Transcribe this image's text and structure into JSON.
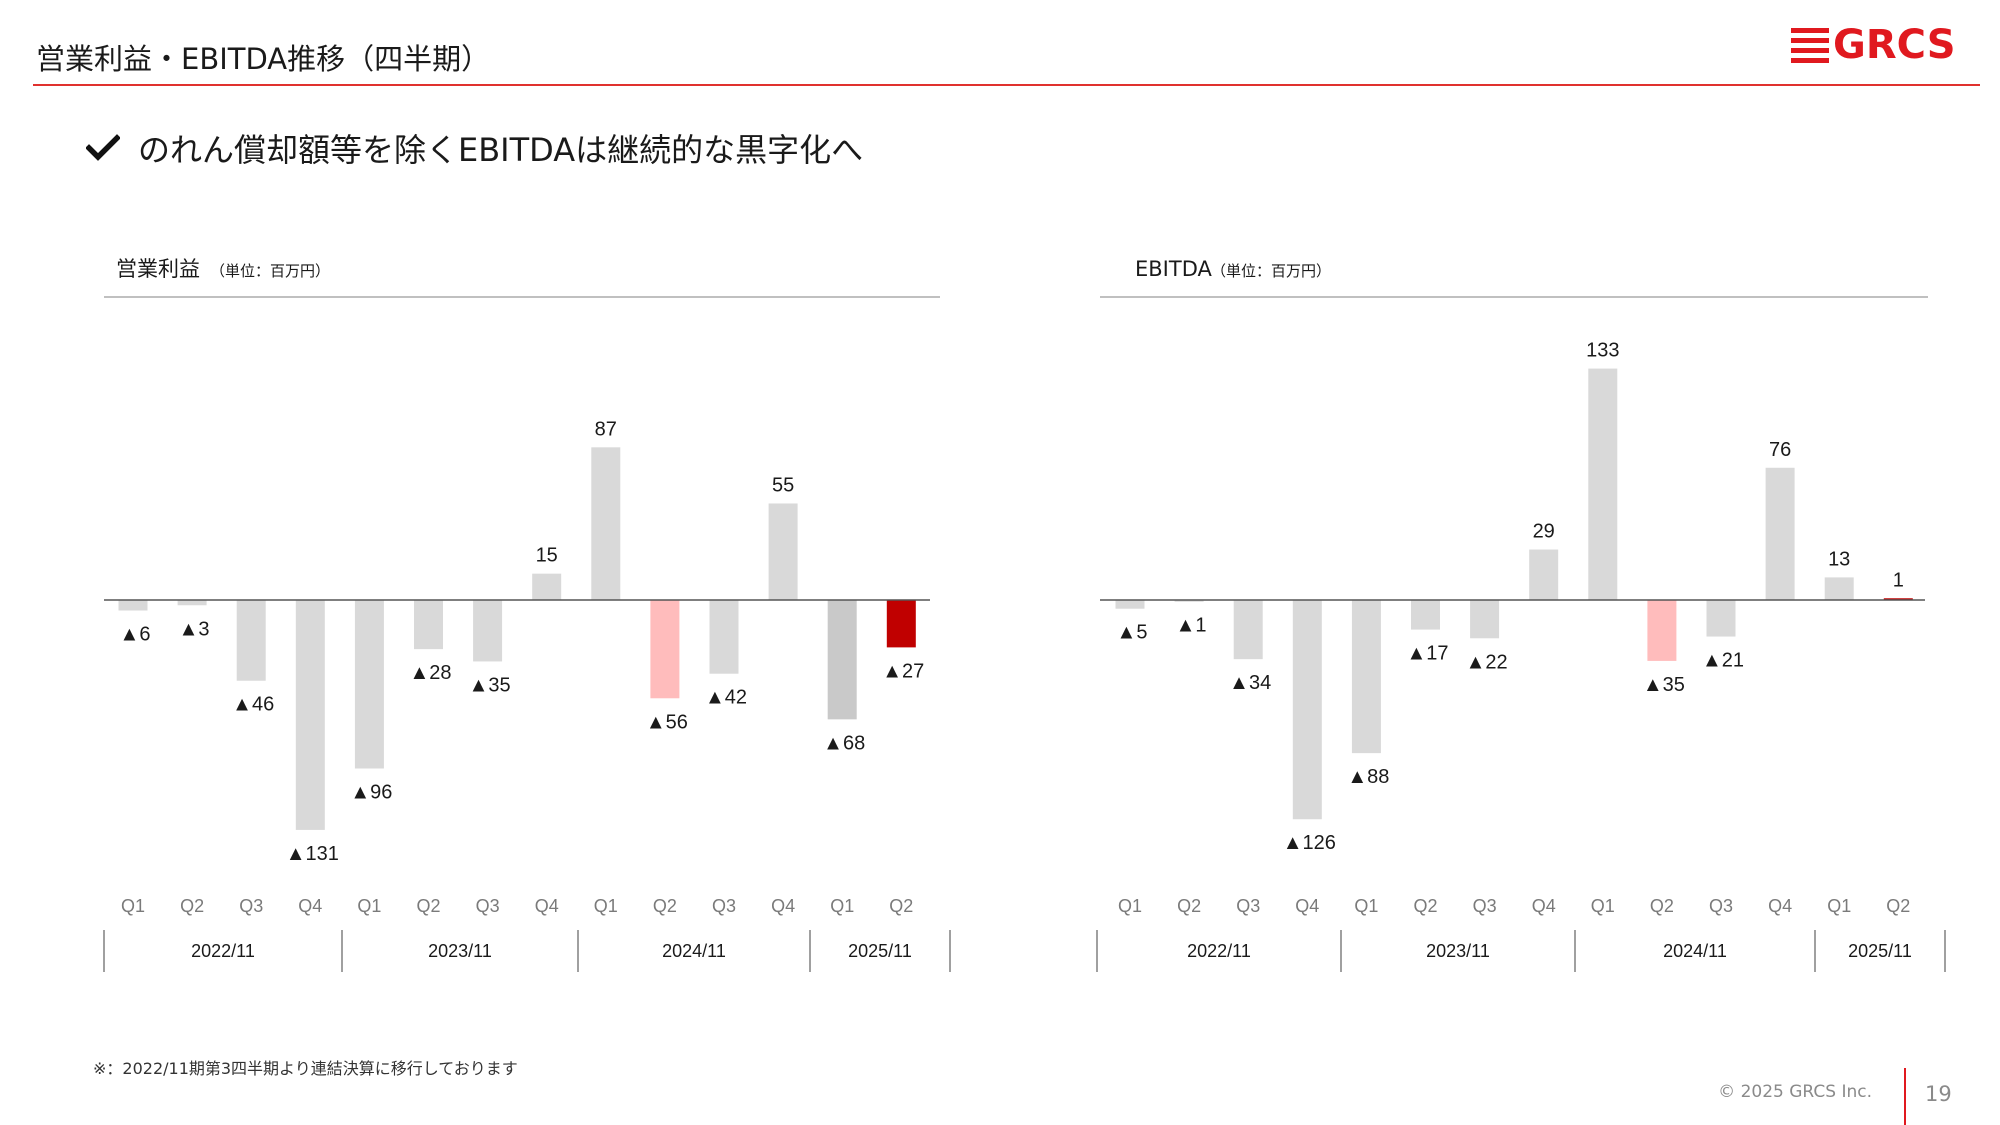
{
  "header": {
    "title": "営業利益・EBITDA推移（四半期）",
    "logo_text": "GRCS"
  },
  "headline": "のれん償却額等を除くEBITDAは継続的な黒字化へ",
  "footnote": "※：2022/11期第3四半期より連結決算に移行しております",
  "footer": {
    "copyright": "© 2025 GRCS Inc.",
    "page_number": "19"
  },
  "colors": {
    "accent": "#e0191f",
    "bar_default": "#d9d9d9",
    "bar_highlight_prior": "#ffbcbc",
    "bar_highlight_current": "#c00000",
    "bar_q1_2025": "#c9c9c9"
  },
  "chart_data": [
    {
      "type": "bar",
      "title": "営業利益",
      "unit": "（単位：百万円）",
      "categories": [
        "Q1",
        "Q2",
        "Q3",
        "Q4",
        "Q1",
        "Q2",
        "Q3",
        "Q4",
        "Q1",
        "Q2",
        "Q3",
        "Q4",
        "Q1",
        "Q2"
      ],
      "values": [
        -6,
        -3,
        -46,
        -131,
        -96,
        -28,
        -35,
        15,
        87,
        -56,
        -42,
        55,
        -68,
        -27
      ],
      "labels": [
        "▲6",
        "▲3",
        "▲46",
        "▲131",
        "▲96",
        "▲28",
        "▲35",
        "15",
        "87",
        "▲56",
        "▲42",
        "55",
        "▲68",
        "▲27"
      ],
      "bar_colors": [
        "default",
        "default",
        "default",
        "default",
        "default",
        "default",
        "default",
        "default",
        "default",
        "prior",
        "default",
        "default",
        "q1_2025",
        "current"
      ],
      "groups": [
        {
          "label": "2022/11",
          "count": 4
        },
        {
          "label": "2023/11",
          "count": 4
        },
        {
          "label": "2024/11",
          "count": 4
        },
        {
          "label": "2025/11",
          "count": 2
        }
      ],
      "grid": false,
      "legend": "none"
    },
    {
      "type": "bar",
      "title": "EBITDA",
      "unit": "（単位：百万円）",
      "categories": [
        "Q1",
        "Q2",
        "Q3",
        "Q4",
        "Q1",
        "Q2",
        "Q3",
        "Q4",
        "Q1",
        "Q2",
        "Q3",
        "Q4",
        "Q1",
        "Q2"
      ],
      "values": [
        -5,
        -1,
        -34,
        -126,
        -88,
        -17,
        -22,
        29,
        133,
        -35,
        -21,
        76,
        13,
        1
      ],
      "labels": [
        "▲5",
        "▲1",
        "▲34",
        "▲126",
        "▲88",
        "▲17",
        "▲22",
        "29",
        "133",
        "▲35",
        "▲21",
        "76",
        "13",
        "1"
      ],
      "bar_colors": [
        "default",
        "default",
        "default",
        "default",
        "default",
        "default",
        "default",
        "default",
        "default",
        "prior",
        "default",
        "default",
        "default",
        "current"
      ],
      "groups": [
        {
          "label": "2022/11",
          "count": 4
        },
        {
          "label": "2023/11",
          "count": 4
        },
        {
          "label": "2024/11",
          "count": 4
        },
        {
          "label": "2025/11",
          "count": 2
        }
      ],
      "grid": false,
      "legend": "none"
    }
  ]
}
